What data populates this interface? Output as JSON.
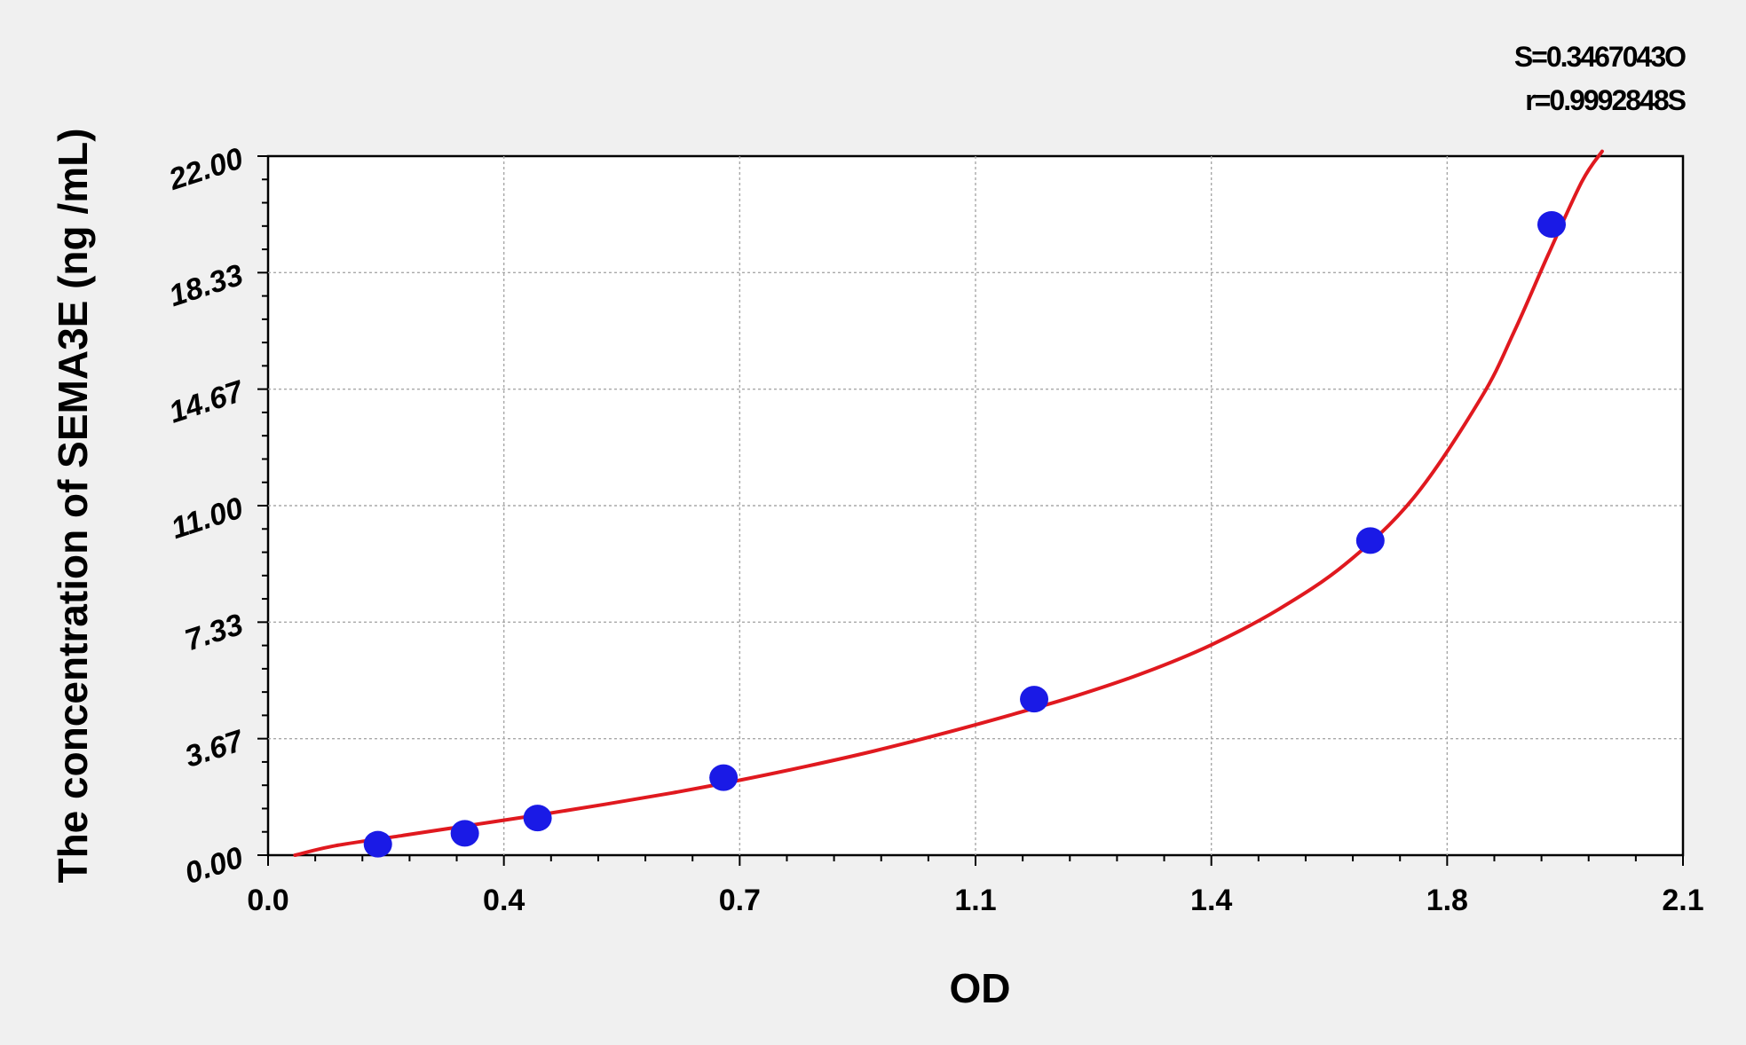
{
  "chart_data": {
    "type": "scatter",
    "xlabel": "OD",
    "ylabel": "The concentration of SEMA3E (ng /mL)",
    "xlim": [
      0.0,
      2.1
    ],
    "ylim": [
      0.0,
      22.0
    ],
    "x_ticks": [
      "0.0",
      "0.4",
      "0.7",
      "1.1",
      "1.4",
      "1.8",
      "2.1"
    ],
    "x_tick_values": [
      0.0,
      0.35,
      0.7,
      1.05,
      1.4,
      1.75,
      2.1
    ],
    "y_ticks": [
      "0.00",
      "3.67",
      "7.33",
      "11.00",
      "14.67",
      "18.33",
      "22.00"
    ],
    "y_tick_values": [
      0.0,
      3.667,
      7.333,
      11.0,
      14.667,
      18.333,
      22.0
    ],
    "grid": true,
    "annotations": {
      "s": "S=0.3467043O",
      "r": "r=0.9992848S"
    },
    "colors": {
      "points": "#1a1ae6",
      "curve": "#e0191f"
    },
    "series": [
      {
        "type": "scatter",
        "x": [
          0.163,
          0.292,
          0.4,
          0.676,
          1.137,
          1.636,
          1.905
        ],
        "y": [
          0.344,
          0.688,
          1.17,
          2.44,
          4.91,
          9.9,
          19.85
        ]
      },
      {
        "type": "line",
        "x": [
          0.04,
          0.1,
          0.2,
          0.3,
          0.4,
          0.5,
          0.6,
          0.7,
          0.8,
          0.9,
          1.0,
          1.1,
          1.2,
          1.3,
          1.4,
          1.5,
          1.6,
          1.7,
          1.8,
          1.85,
          1.9,
          1.95,
          1.98
        ],
        "y": [
          0.0,
          0.3,
          0.62,
          0.94,
          1.26,
          1.6,
          1.96,
          2.36,
          2.8,
          3.28,
          3.82,
          4.4,
          5.02,
          5.74,
          6.62,
          7.74,
          9.18,
          11.24,
          14.38,
          16.5,
          18.9,
          21.2,
          22.15
        ]
      }
    ]
  }
}
